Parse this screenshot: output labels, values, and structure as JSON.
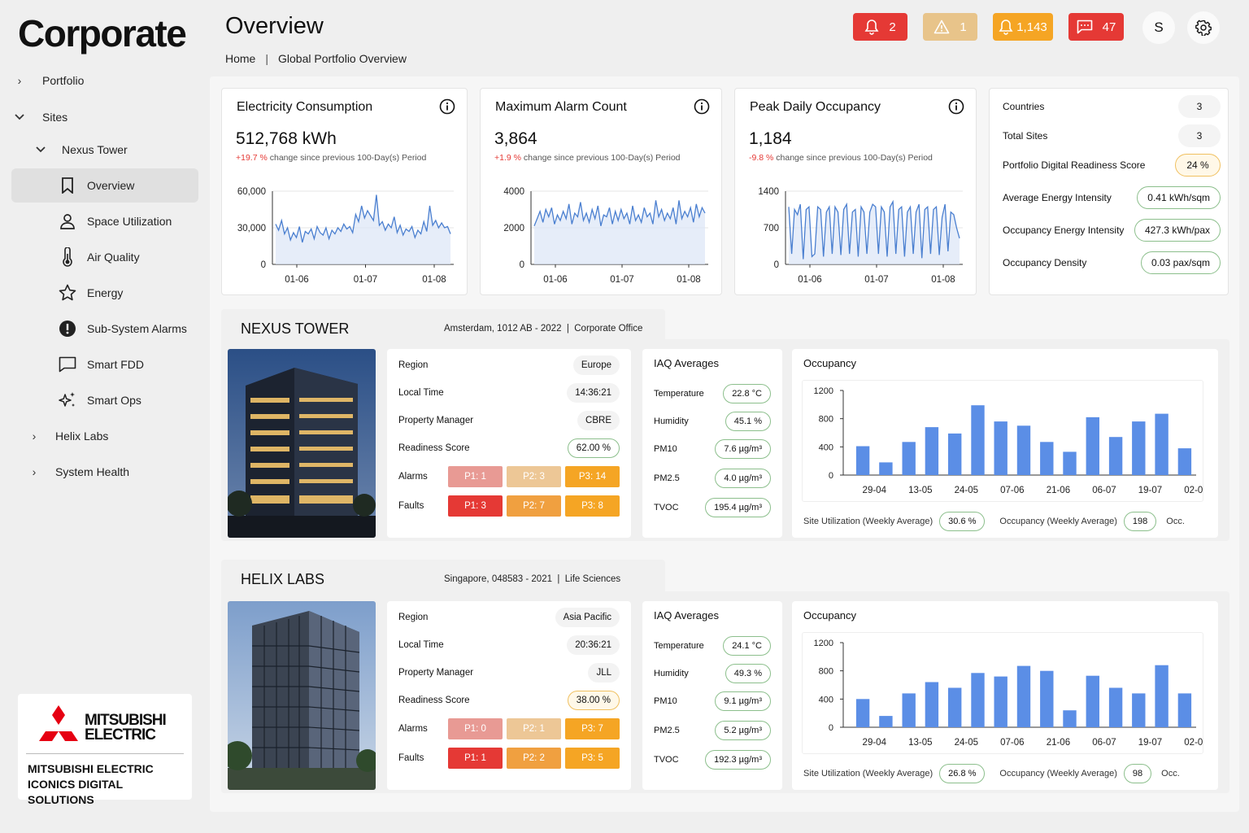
{
  "brand": "Corporate",
  "sidebar": {
    "portfolio": "Portfolio",
    "sites": "Sites",
    "site_current": "Nexus Tower",
    "sub_items": [
      "Overview",
      "Space Utilization",
      "Air Quality",
      "Energy",
      "Sub-System Alarms",
      "Smart FDD",
      "Smart Ops"
    ],
    "other_sites": [
      "Helix Labs",
      "System Health"
    ],
    "logo_word_1": "MITSUBISHI",
    "logo_word_2": "ELECTRIC",
    "logo_sub_1": "MITSUBISHI ELECTRIC",
    "logo_sub_2": "ICONICS DIGITAL SOLUTIONS"
  },
  "header": {
    "title": "Overview",
    "breadcrumb_home": "Home",
    "breadcrumb_sep": "|",
    "breadcrumb_current": "Global Portfolio Overview",
    "badges": [
      {
        "icon": "bell-icon",
        "count": "2",
        "color": "#e53935"
      },
      {
        "icon": "warning-icon",
        "count": "1",
        "color": "#e8c48a"
      },
      {
        "icon": "bell-icon",
        "count": "1,143",
        "color": "#f5a524"
      },
      {
        "icon": "chat-icon",
        "count": "47",
        "color": "#e53935"
      }
    ],
    "user_initial": "S"
  },
  "kpis": [
    {
      "title": "Electricity Consumption",
      "value": "512,768 kWh",
      "change": "+19.7 %",
      "change_text": "change since previous 100-Day(s) Period",
      "chart_data": {
        "type": "line",
        "x_ticks": [
          "01-06",
          "01-07",
          "01-08"
        ],
        "y_ticks": [
          "60,000",
          "30,000",
          "0"
        ],
        "ylim": [
          0,
          60000
        ],
        "values": [
          33000,
          28000,
          36000,
          25000,
          30000,
          20000,
          26000,
          22000,
          31000,
          18000,
          27000,
          25000,
          29000,
          21000,
          31000,
          26000,
          24000,
          30000,
          21000,
          28000,
          25000,
          30000,
          27000,
          33000,
          29000,
          31000,
          26000,
          41000,
          35000,
          48000,
          38000,
          44000,
          40000,
          36000,
          57000,
          32000,
          35000,
          28000,
          33000,
          30000,
          39000,
          26000,
          32000,
          24000,
          29000,
          27000,
          31000,
          22000,
          28000,
          25000,
          35000,
          27000,
          48000,
          32000,
          36000,
          30000,
          34000,
          30000,
          31000,
          25000
        ]
      }
    },
    {
      "title": "Maximum Alarm Count",
      "value": "3,864",
      "change": "+1.9 %",
      "change_text": "change since previous 100-Day(s) Period",
      "chart_data": {
        "type": "line",
        "x_ticks": [
          "01-06",
          "01-07",
          "01-08"
        ],
        "y_ticks": [
          "4000",
          "2000",
          "0"
        ],
        "ylim": [
          0,
          4000
        ],
        "values": [
          2100,
          2500,
          2900,
          2300,
          3000,
          2600,
          3100,
          2200,
          2700,
          2400,
          2900,
          2500,
          3300,
          2200,
          2800,
          2600,
          3400,
          2400,
          2800,
          2300,
          3000,
          2500,
          3200,
          2100,
          2700,
          2600,
          3100,
          2200,
          2900,
          2400,
          3000,
          2500,
          2800,
          2200,
          3200,
          2400,
          2700,
          2300,
          3100,
          2600,
          2800,
          2200,
          3500,
          2600,
          3000,
          2400,
          2800,
          2500,
          3100,
          2200,
          3500,
          2500,
          2900,
          2600,
          3100,
          2300,
          3300,
          2600,
          3100,
          2800
        ]
      }
    },
    {
      "title": "Peak Daily Occupancy",
      "value": "1,184",
      "change": "-9.8 %",
      "change_text": "change since previous 100-Day(s) Period",
      "chart_data": {
        "type": "line",
        "x_ticks": [
          "01-06",
          "01-07",
          "01-08"
        ],
        "y_ticks": [
          "1400",
          "700",
          "0"
        ],
        "ylim": [
          0,
          1400
        ],
        "values": [
          1100,
          200,
          1050,
          950,
          1150,
          100,
          1050,
          1100,
          150,
          200,
          1100,
          1050,
          150,
          1000,
          1100,
          200,
          1100,
          1000,
          180,
          1050,
          1150,
          200,
          1000,
          1050,
          150,
          1100,
          1000,
          200,
          1000,
          1150,
          1100,
          200,
          1100,
          1000,
          150,
          1100,
          1200,
          200,
          1050,
          1100,
          150,
          1000,
          1100,
          200,
          1000,
          1150,
          120,
          1050,
          1100,
          200,
          1050,
          1100,
          180,
          900,
          1150,
          250,
          1000,
          950,
          700,
          500
        ]
      }
    }
  ],
  "portfolio_stats": [
    {
      "label": "Countries",
      "value": "3",
      "style": "gray"
    },
    {
      "label": "Total Sites",
      "value": "3",
      "style": "gray"
    },
    {
      "label": "Portfolio Digital Readiness Score",
      "value": "24 %",
      "style": "amber"
    },
    {
      "label": "Average Energy Intensity",
      "value": "0.41 kWh/sqm",
      "style": "green"
    },
    {
      "label": "Occupancy Energy Intensity",
      "value": "427.3 kWh/pax",
      "style": "green"
    },
    {
      "label": "Occupancy Density",
      "value": "0.03 pax/sqm",
      "style": "green"
    }
  ],
  "labels": {
    "region": "Region",
    "local_time": "Local Time",
    "property_manager": "Property Manager",
    "readiness_score": "Readiness Score",
    "alarms": "Alarms",
    "faults": "Faults",
    "iaq_title": "IAQ Averages",
    "temperature": "Temperature",
    "humidity": "Humidity",
    "pm10": "PM10",
    "pm25": "PM2.5",
    "tvoc": "TVOC",
    "occupancy_title": "Occupancy",
    "site_util": "Site Utilization (Weekly Average)",
    "occ_weekly": "Occupancy (Weekly Average)",
    "occ_trunc": "Occ."
  },
  "sites": [
    {
      "name": "NEXUS TOWER",
      "meta": "Amsterdam, 1012 AB - 2022",
      "meta_sep": "|",
      "meta_type": "Corporate Office",
      "region": "Europe",
      "local_time": "14:36:21",
      "property_manager": "CBRE",
      "readiness": "62.00 %",
      "readiness_style": "green",
      "alarms": [
        "P1: 1",
        "P2: 3",
        "P3: 14"
      ],
      "faults": [
        "P1: 3",
        "P2: 7",
        "P3: 8"
      ],
      "iaq": {
        "temperature": "22.8 °C",
        "humidity": "45.1 %",
        "pm10": "7.6 µg/m³",
        "pm25": "4.0 µg/m³",
        "tvoc": "195.4 µg/m³"
      },
      "site_util_value": "30.6 %",
      "occ_weekly_value": "198",
      "chart_data": {
        "type": "bar",
        "categories": [
          "29-04",
          "",
          "13-05",
          "",
          "24-05",
          "",
          "07-06",
          "",
          "21-06",
          "",
          "06-07",
          "",
          "19-07",
          "",
          "02-08"
        ],
        "x_tick_labels": [
          "29-04",
          "13-05",
          "24-05",
          "07-06",
          "21-06",
          "06-07",
          "19-07",
          "02-08"
        ],
        "values": [
          410,
          180,
          470,
          680,
          590,
          990,
          760,
          700,
          470,
          330,
          820,
          540,
          760,
          870,
          380
        ],
        "y_ticks": [
          "1200",
          "800",
          "400",
          "0"
        ],
        "ylim": [
          0,
          1200
        ]
      }
    },
    {
      "name": "HELIX LABS",
      "meta": "Singapore, 048583 - 2021",
      "meta_sep": "|",
      "meta_type": "Life Sciences",
      "region": "Asia Pacific",
      "local_time": "20:36:21",
      "property_manager": "JLL",
      "readiness": "38.00 %",
      "readiness_style": "amber",
      "alarms": [
        "P1: 0",
        "P2: 1",
        "P3: 7"
      ],
      "faults": [
        "P1: 1",
        "P2: 2",
        "P3: 5"
      ],
      "iaq": {
        "temperature": "24.1 °C",
        "humidity": "49.3 %",
        "pm10": "9.1 µg/m³",
        "pm25": "5.2 µg/m³",
        "tvoc": "192.3 µg/m³"
      },
      "site_util_value": "26.8 %",
      "occ_weekly_value": "98",
      "chart_data": {
        "type": "bar",
        "categories": [
          "29-04",
          "",
          "13-05",
          "",
          "24-05",
          "",
          "07-06",
          "",
          "21-06",
          "",
          "06-07",
          "",
          "19-07",
          "",
          "02-08"
        ],
        "x_tick_labels": [
          "29-04",
          "13-05",
          "24-05",
          "07-06",
          "21-06",
          "06-07",
          "19-07",
          "02-08"
        ],
        "values": [
          400,
          160,
          480,
          640,
          560,
          770,
          720,
          870,
          800,
          240,
          730,
          560,
          480,
          880,
          480
        ],
        "y_ticks": [
          "1200",
          "800",
          "400",
          "0"
        ],
        "ylim": [
          0,
          1200
        ]
      }
    }
  ],
  "colors": {
    "line": "#4a7fd0",
    "bar": "#5b8ee6",
    "p1_alarm": "#e89a94",
    "p2_alarm": "#edc796",
    "p3_alarm": "#f5a524",
    "p1_fault": "#e53935",
    "p2_fault": "#f0a040",
    "p3_fault": "#f5a524"
  }
}
